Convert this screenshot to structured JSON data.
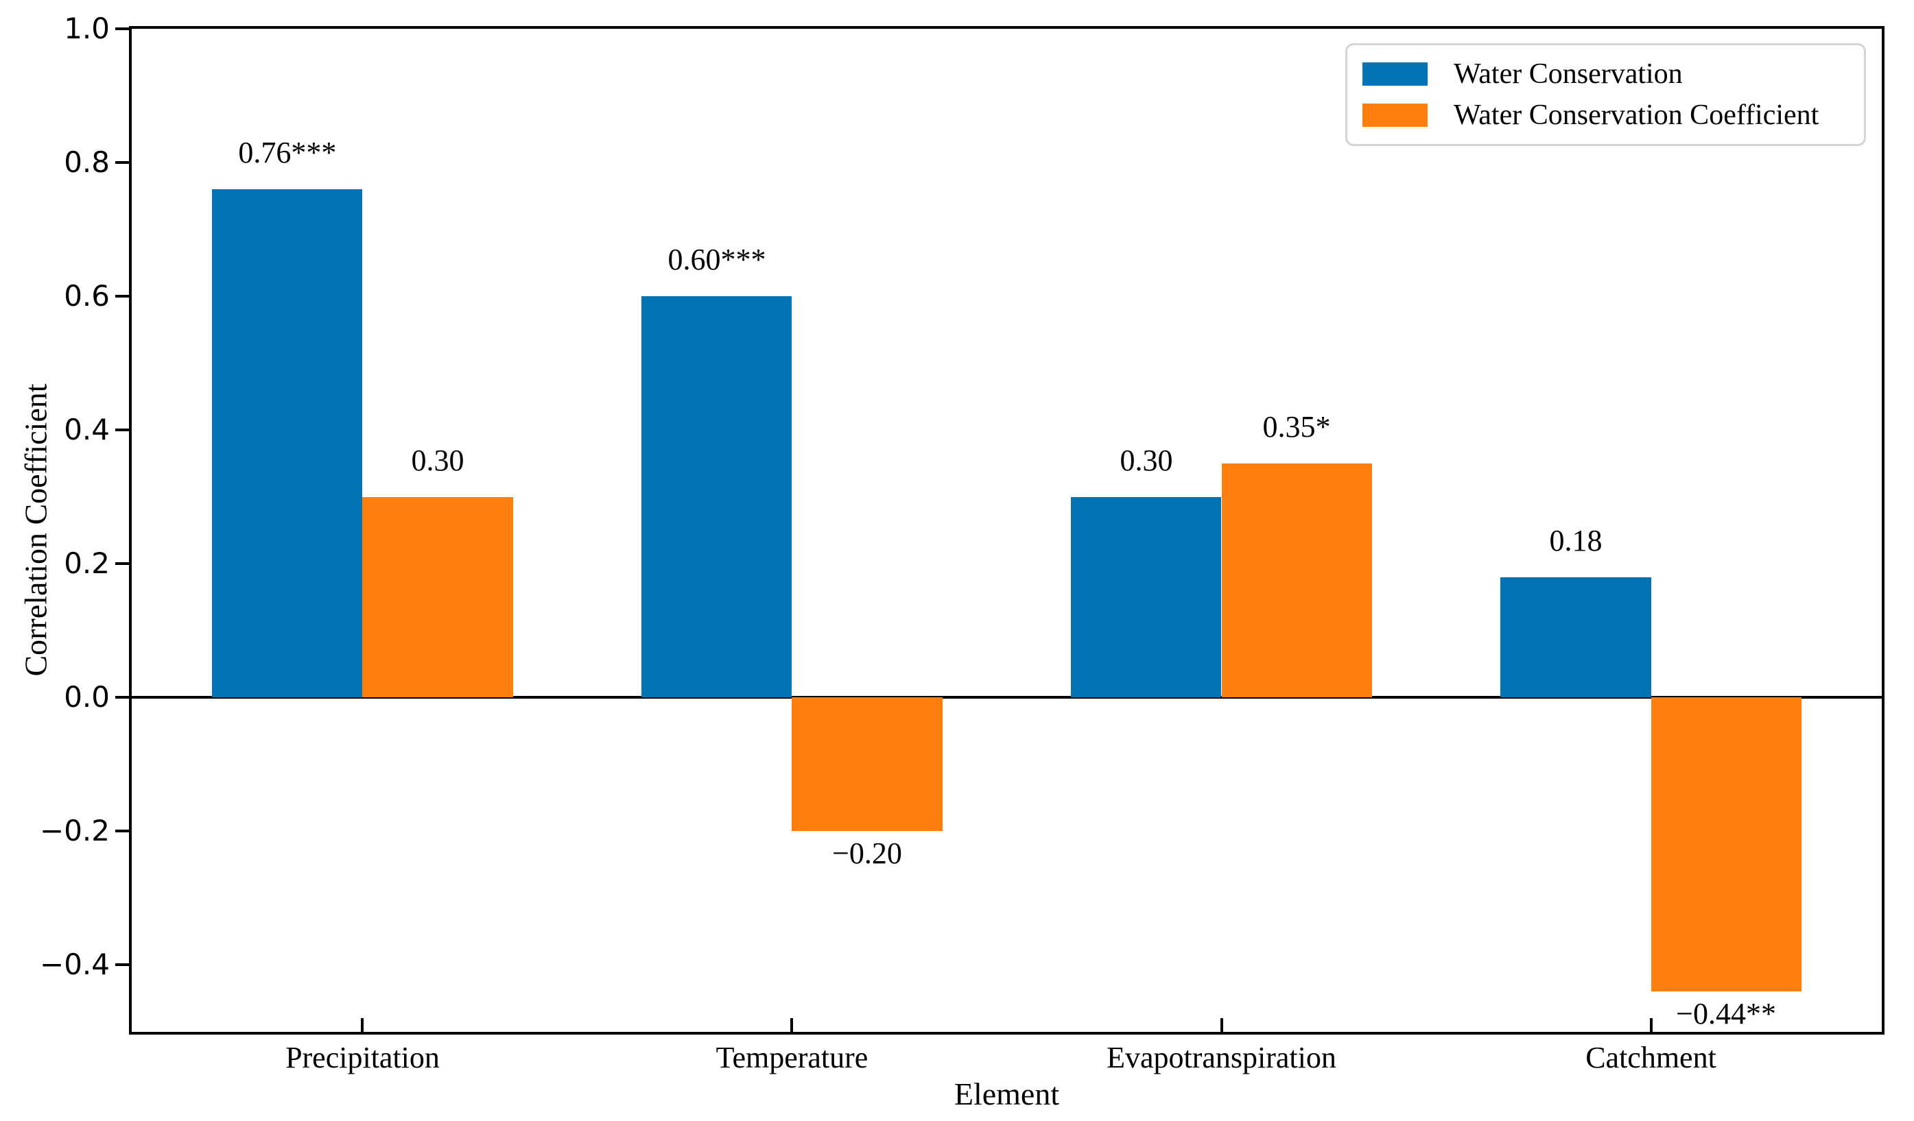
{
  "chart_data": {
    "type": "bar",
    "title": "",
    "xlabel": "Element",
    "ylabel": "Correlation Coefficient",
    "categories": [
      "Precipitation",
      "Temperature",
      "Evapotranspiration",
      "Catchment"
    ],
    "series": [
      {
        "name": "Water Conservation",
        "color": "#0473b3",
        "values": [
          0.76,
          0.6,
          0.3,
          0.18
        ],
        "labels": [
          "0.76***",
          "0.60***",
          "0.30",
          "0.18"
        ]
      },
      {
        "name": "Water Conservation Coefficient",
        "color": "#ff7f0e",
        "values": [
          0.3,
          -0.2,
          0.35,
          -0.44
        ],
        "labels": [
          "0.30",
          "−0.20",
          "0.35*",
          "−0.44**"
        ]
      }
    ],
    "ylim": [
      -0.5,
      1.0
    ],
    "yticks": [
      1.0,
      0.8,
      0.6,
      0.4,
      0.2,
      0.0,
      -0.2,
      -0.4
    ],
    "ytick_labels": [
      "1.0",
      "0.8",
      "0.6",
      "0.4",
      "0.2",
      "0.0",
      "−0.2",
      "−0.4"
    ],
    "group_centers_frac": [
      0.1319,
      0.3773,
      0.6227,
      0.8681
    ],
    "bar_width_frac": 0.08589,
    "zero_line": true,
    "grid": false,
    "legend_position": "top-right"
  }
}
